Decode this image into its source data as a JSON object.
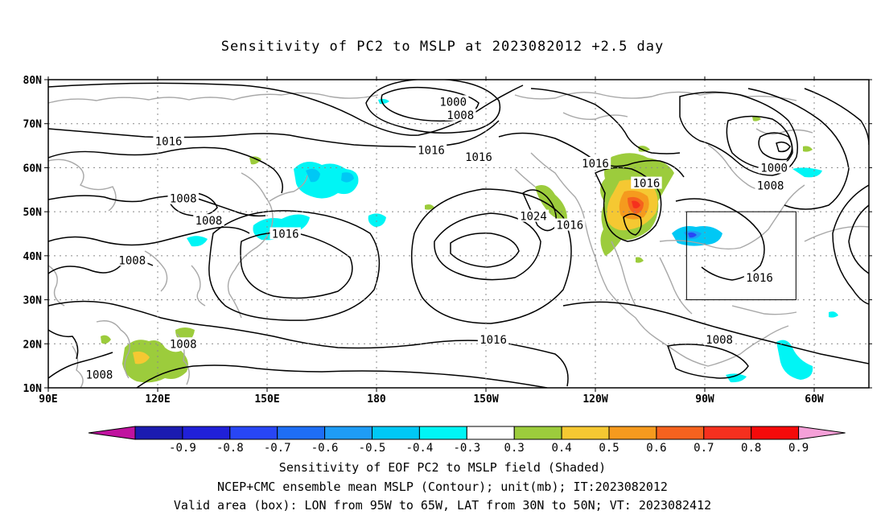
{
  "title": "Sensitivity of PC2 to MSLP at 2023082012 +2.5 day",
  "axes": {
    "lat_labels": [
      "80N",
      "70N",
      "60N",
      "50N",
      "40N",
      "30N",
      "20N",
      "10N"
    ],
    "lon_labels": [
      "90E",
      "120E",
      "150E",
      "180",
      "150W",
      "120W",
      "90W",
      "60W"
    ],
    "lat_values": [
      80,
      70,
      60,
      50,
      40,
      30,
      20,
      10
    ],
    "lon_values_east": [
      90,
      120,
      150,
      180,
      210,
      240,
      270,
      300
    ],
    "lon_range_east": [
      90,
      315
    ],
    "lat_range": [
      10,
      80
    ],
    "grid": "dotted"
  },
  "contours": {
    "unit": "mb",
    "labels": [
      {
        "text": "1000",
        "lon": 201,
        "lat": 75
      },
      {
        "text": "1008",
        "lon": 203,
        "lat": 72
      },
      {
        "text": "1016",
        "lon": 123,
        "lat": 66
      },
      {
        "text": "1016",
        "lon": 195,
        "lat": 64
      },
      {
        "text": "1016",
        "lon": 208,
        "lat": 62.5
      },
      {
        "text": "1016",
        "lon": 240,
        "lat": 61
      },
      {
        "text": "1016",
        "lon": 254,
        "lat": 56.5
      },
      {
        "text": "1008",
        "lon": 127,
        "lat": 53
      },
      {
        "text": "1008",
        "lon": 134,
        "lat": 48
      },
      {
        "text": "1024",
        "lon": 223,
        "lat": 49
      },
      {
        "text": "1016",
        "lon": 233,
        "lat": 47
      },
      {
        "text": "1016",
        "lon": 155,
        "lat": 45
      },
      {
        "text": "1008",
        "lon": 113,
        "lat": 39
      },
      {
        "text": "1000",
        "lon": 289,
        "lat": 60
      },
      {
        "text": "1008",
        "lon": 288,
        "lat": 56
      },
      {
        "text": "1016",
        "lon": 285,
        "lat": 35
      },
      {
        "text": "1016",
        "lon": 212,
        "lat": 21
      },
      {
        "text": "1008",
        "lon": 274,
        "lat": 21
      },
      {
        "text": "1008",
        "lon": 127,
        "lat": 20
      },
      {
        "text": "1008",
        "lon": 104,
        "lat": 13
      }
    ]
  },
  "valid_box": {
    "lon_west": [
      95,
      65
    ],
    "lat": [
      30,
      50
    ]
  },
  "colorbar": {
    "labels": [
      "-0.9",
      "-0.8",
      "-0.7",
      "-0.6",
      "-0.5",
      "-0.4",
      "-0.3",
      "0.3",
      "0.4",
      "0.5",
      "0.6",
      "0.7",
      "0.8",
      "0.9"
    ],
    "low_triangle_color": "#c0129f",
    "high_triangle_color": "#f5a0d8",
    "colors": [
      "#1b1bb0",
      "#2020d8",
      "#2846f5",
      "#1e6ef5",
      "#1e9cf5",
      "#00c8f5",
      "#00f5f5",
      "#ffffff",
      "#9ccc3c",
      "#f5c832",
      "#f59a1e",
      "#f5621e",
      "#f5301e",
      "#f50a0a"
    ]
  },
  "captions": {
    "line1": "Sensitivity of EOF PC2 to MSLP field (Shaded)",
    "line2": "NCEP+CMC ensemble mean MSLP (Contour); unit(mb); IT:2023082012",
    "line3": "Valid area (box): LON from 95W to 65W, LAT from 30N to 50N; VT: 2023082412"
  },
  "colors": {
    "coast": "#a8a8a8",
    "contour": "#000000",
    "grid": "#888888"
  }
}
